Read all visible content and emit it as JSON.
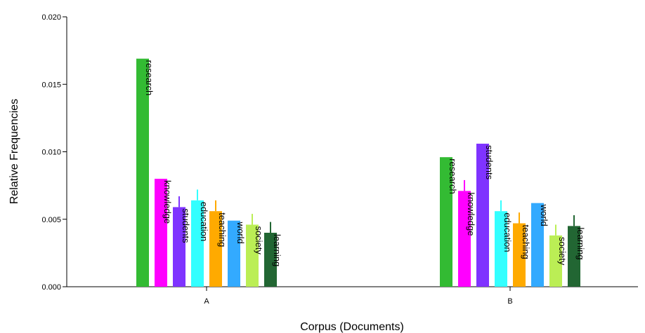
{
  "chart_data": {
    "type": "bar",
    "xlabel": "Corpus (Documents)",
    "ylabel": "Relative Frequencies",
    "ylim": [
      0,
      0.02
    ],
    "yticks": [
      "0.000",
      "0.005",
      "0.010",
      "0.015",
      "0.020"
    ],
    "categories": [
      "A",
      "B"
    ],
    "series": [
      {
        "name": "research",
        "color": "#33bb33",
        "values": [
          0.0169,
          0.0096
        ],
        "errors": [
          0,
          0
        ]
      },
      {
        "name": "knowledge",
        "color": "#ff00ff",
        "values": [
          0.008,
          0.0071
        ],
        "errors": [
          0,
          0.0008
        ]
      },
      {
        "name": "students",
        "color": "#7f33ff",
        "values": [
          0.0059,
          0.0106
        ],
        "errors": [
          0.0008,
          0
        ]
      },
      {
        "name": "education",
        "color": "#33ffff",
        "values": [
          0.0064,
          0.0056
        ],
        "errors": [
          0.0008,
          0.0008
        ]
      },
      {
        "name": "teaching",
        "color": "#ffaa00",
        "values": [
          0.0056,
          0.0047
        ],
        "errors": [
          0.0008,
          0.0008
        ]
      },
      {
        "name": "world",
        "color": "#33aaff",
        "values": [
          0.0049,
          0.0062
        ],
        "errors": [
          0,
          0
        ]
      },
      {
        "name": "society",
        "color": "#bbee55",
        "values": [
          0.0046,
          0.0038
        ],
        "errors": [
          0.0008,
          0.0008
        ]
      },
      {
        "name": "learning",
        "color": "#226633",
        "values": [
          0.004,
          0.0045
        ],
        "errors": [
          0.0008,
          0.0008
        ]
      }
    ]
  }
}
